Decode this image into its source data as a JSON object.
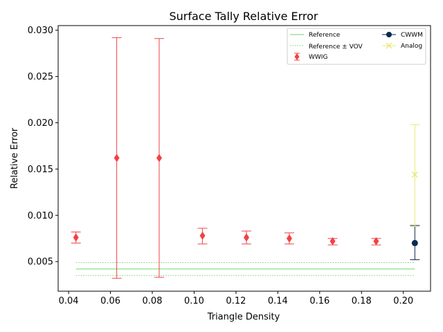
{
  "chart_data": {
    "type": "scatter",
    "title": "Surface Tally Relative Error",
    "xlabel": "Triangle Density",
    "ylabel": "Relative Error",
    "xlim": [
      0.035,
      0.213
    ],
    "ylim": [
      0.0018,
      0.0305
    ],
    "xticks": [
      0.04,
      0.06,
      0.08,
      0.1,
      0.12,
      0.14,
      0.16,
      0.18,
      0.2
    ],
    "xtick_labels": [
      "0.04",
      "0.06",
      "0.08",
      "0.10",
      "0.12",
      "0.14",
      "0.16",
      "0.18",
      "0.20"
    ],
    "yticks": [
      0.005,
      0.01,
      0.015,
      0.02,
      0.025,
      0.03
    ],
    "ytick_labels": [
      "0.005",
      "0.010",
      "0.015",
      "0.020",
      "0.025",
      "0.030"
    ],
    "grid": false,
    "legend_position": "top-right",
    "reference": {
      "name": "Reference",
      "value": 0.0042,
      "x_range": [
        0.0435,
        0.2055
      ],
      "color": "#6dd66d"
    },
    "reference_band": {
      "name": "Reference ± VOV",
      "values": [
        0.0035,
        0.0049
      ],
      "color": "#6dd66d"
    },
    "series": [
      {
        "name": "WWIG",
        "marker": "diamond",
        "color": "#f24246",
        "points": [
          {
            "x": 0.0435,
            "y": 0.0076,
            "low": 0.007,
            "high": 0.0082
          },
          {
            "x": 0.063,
            "y": 0.0162,
            "low": 0.0032,
            "high": 0.0292
          },
          {
            "x": 0.0833,
            "y": 0.0162,
            "low": 0.0033,
            "high": 0.0291
          },
          {
            "x": 0.104,
            "y": 0.0078,
            "low": 0.0069,
            "high": 0.0086
          },
          {
            "x": 0.125,
            "y": 0.0076,
            "low": 0.0069,
            "high": 0.0083
          },
          {
            "x": 0.1455,
            "y": 0.0075,
            "low": 0.0069,
            "high": 0.0081
          },
          {
            "x": 0.1662,
            "y": 0.0072,
            "low": 0.0068,
            "high": 0.0075
          },
          {
            "x": 0.187,
            "y": 0.0072,
            "low": 0.0068,
            "high": 0.0075
          }
        ]
      },
      {
        "name": "CWWM",
        "marker": "circle",
        "color": "#0b2a4f",
        "points": [
          {
            "x": 0.2055,
            "y": 0.007,
            "low": 0.0052,
            "high": 0.0089
          }
        ]
      },
      {
        "name": "Analog",
        "marker": "x",
        "color": "#e8e87a",
        "points": [
          {
            "x": 0.2055,
            "y": 0.0144,
            "low": 0.0088,
            "high": 0.0198
          }
        ]
      }
    ]
  }
}
